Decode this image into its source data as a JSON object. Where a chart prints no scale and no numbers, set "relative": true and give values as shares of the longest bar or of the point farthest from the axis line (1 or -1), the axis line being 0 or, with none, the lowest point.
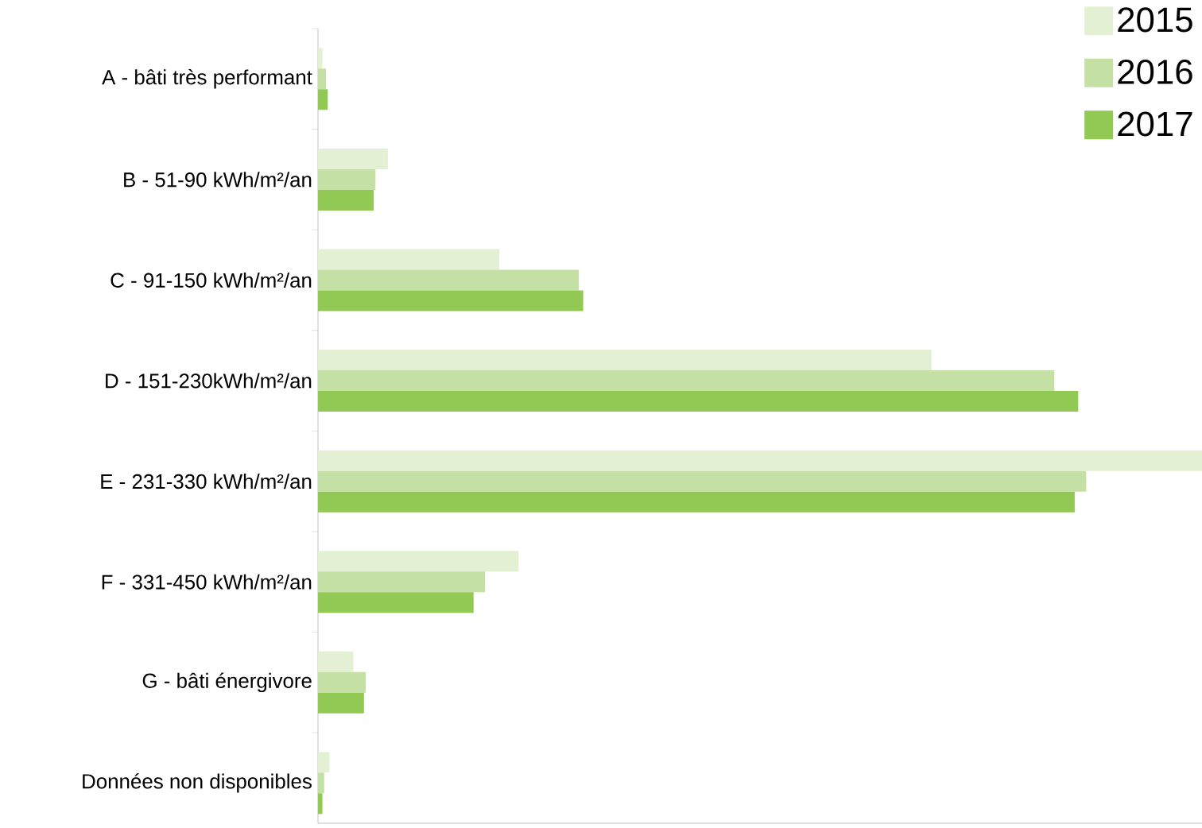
{
  "chart_data": {
    "type": "bar",
    "orientation": "horizontal",
    "relative": true,
    "legend": "top right",
    "categories": [
      "A - bâti très performant",
      "B - 51-90 kWh/m²/an",
      "C - 91-150 kWh/m²/an",
      "D - 151-230kWh/m²/an",
      "E - 231-330 kWh/m²/an",
      "F - 331-450 kWh/m²/an",
      "G - bâti énergivore",
      "Données non disponibles"
    ],
    "series": [
      {
        "name": "2015",
        "color": "#e3f0d3",
        "values": [
          0.005,
          0.079,
          0.205,
          0.694,
          1,
          0.227,
          0.04,
          0.013
        ]
      },
      {
        "name": "2016",
        "color": "#c5e0a5",
        "values": [
          0.009,
          0.065,
          0.295,
          0.833,
          0.869,
          0.189,
          0.054,
          0.007
        ]
      },
      {
        "name": "2017",
        "color": "#92c955",
        "values": [
          0.011,
          0.063,
          0.3,
          0.86,
          0.856,
          0.176,
          0.052,
          0.005
        ]
      }
    ]
  }
}
